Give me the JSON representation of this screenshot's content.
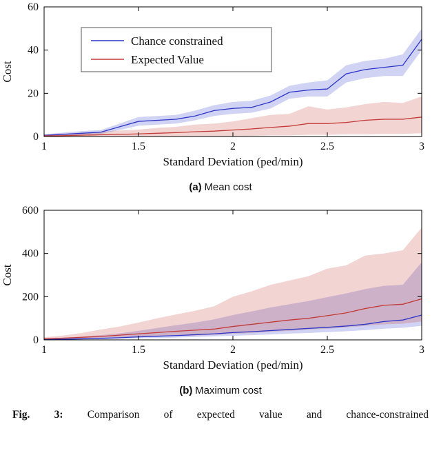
{
  "figure": {
    "caption_a_tag": "(a)",
    "caption_a_text": "Mean cost",
    "caption_b_tag": "(b)",
    "caption_b_text": "Maximum cost",
    "fig_label": "Fig. 3:",
    "fig_caption": "Comparison of expected value and chance-constrained"
  },
  "colors": {
    "chance_constrained": "#2b35c8",
    "expected_value": "#c43a36",
    "axis": "#000000"
  },
  "chart_data": [
    {
      "type": "line",
      "title": "",
      "xlabel": "Standard Deviation (ped/min)",
      "ylabel": "Cost",
      "xlim": [
        1,
        3
      ],
      "ylim": [
        0,
        60
      ],
      "xticks": [
        1,
        1.5,
        2,
        2.5,
        3
      ],
      "yticks": [
        0,
        20,
        40,
        60
      ],
      "grid": false,
      "legend": true,
      "legend_position": "top-left",
      "x": [
        1,
        1.1,
        1.2,
        1.3,
        1.4,
        1.5,
        1.6,
        1.7,
        1.8,
        1.9,
        2,
        2.1,
        2.2,
        2.3,
        2.4,
        2.5,
        2.6,
        2.7,
        2.8,
        2.9,
        3
      ],
      "series": [
        {
          "name": "Chance constrained",
          "color": "#2b35c8",
          "values": [
            0.5,
            1,
            1.5,
            2,
            4.5,
            7,
            7.5,
            8,
            9.5,
            12,
            13,
            13.5,
            16,
            20.5,
            21.5,
            22,
            29,
            31,
            32,
            33,
            45
          ],
          "upper": [
            1,
            1.8,
            2.5,
            3,
            6,
            9,
            9.5,
            10,
            12,
            14.5,
            16,
            16.5,
            19,
            23.5,
            25,
            26,
            33,
            35,
            36,
            38,
            50
          ],
          "lower": [
            0.2,
            0.5,
            0.8,
            1.2,
            3,
            5,
            5.5,
            6,
            7.5,
            9.5,
            10.5,
            11,
            13,
            17.5,
            18.5,
            18.5,
            25,
            27,
            28,
            28,
            40
          ]
        },
        {
          "name": "Expected Value",
          "color": "#c43a36",
          "values": [
            0.3,
            0.4,
            0.6,
            0.8,
            1,
            1.2,
            1.5,
            1.8,
            2.2,
            2.5,
            3,
            3.5,
            4.2,
            4.8,
            6,
            6,
            6.5,
            7.5,
            8,
            8,
            9
          ],
          "upper": [
            1,
            1.3,
            1.8,
            2.2,
            2.8,
            3.2,
            4,
            4.5,
            5.5,
            6,
            7,
            8.5,
            10,
            10.5,
            14,
            12.5,
            13.5,
            15,
            16,
            15.5,
            18.5
          ],
          "lower": [
            0,
            0,
            0,
            0,
            0,
            0,
            0,
            0,
            0,
            0,
            0.2,
            0.3,
            0.5,
            0.5,
            0.8,
            0.8,
            1,
            1,
            1.2,
            1.2,
            1.5
          ]
        }
      ]
    },
    {
      "type": "line",
      "title": "",
      "xlabel": "Standard Deviation (ped/min)",
      "ylabel": "Cost",
      "xlim": [
        1,
        3
      ],
      "ylim": [
        0,
        600
      ],
      "xticks": [
        1,
        1.5,
        2,
        2.5,
        3
      ],
      "yticks": [
        0,
        200,
        400,
        600
      ],
      "grid": false,
      "legend": false,
      "legend_position": "none",
      "x": [
        1,
        1.1,
        1.2,
        1.3,
        1.4,
        1.5,
        1.6,
        1.7,
        1.8,
        1.9,
        2,
        2.1,
        2.2,
        2.3,
        2.4,
        2.5,
        2.6,
        2.7,
        2.8,
        2.9,
        3
      ],
      "series": [
        {
          "name": "Chance constrained",
          "color": "#2b35c8",
          "values": [
            2,
            3,
            5,
            7,
            10,
            14,
            17,
            20,
            24,
            28,
            34,
            38,
            43,
            48,
            53,
            58,
            64,
            72,
            85,
            92,
            115
          ],
          "upper": [
            5,
            10,
            15,
            22,
            30,
            42,
            55,
            68,
            80,
            95,
            115,
            132,
            150,
            165,
            180,
            198,
            215,
            235,
            250,
            255,
            360
          ],
          "lower": [
            0,
            1,
            2,
            3,
            5,
            7,
            9,
            11,
            13,
            16,
            19,
            22,
            25,
            29,
            32,
            36,
            40,
            45,
            52,
            56,
            65
          ]
        },
        {
          "name": "Expected Value",
          "color": "#c43a36",
          "values": [
            5,
            8,
            12,
            16,
            22,
            28,
            34,
            40,
            45,
            50,
            62,
            72,
            82,
            92,
            100,
            112,
            125,
            145,
            160,
            165,
            190
          ],
          "upper": [
            12,
            20,
            32,
            48,
            62,
            80,
            100,
            118,
            135,
            155,
            200,
            225,
            255,
            275,
            295,
            330,
            345,
            390,
            400,
            415,
            520
          ],
          "lower": [
            2,
            3,
            5,
            7,
            9,
            12,
            15,
            18,
            20,
            23,
            28,
            32,
            38,
            42,
            48,
            52,
            58,
            65,
            72,
            75,
            85
          ]
        }
      ]
    }
  ]
}
